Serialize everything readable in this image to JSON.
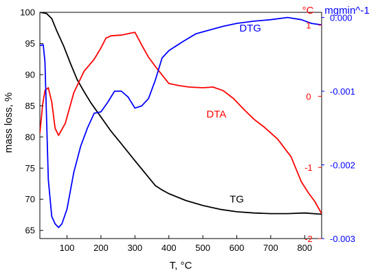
{
  "chart_data": {
    "type": "line",
    "title": "",
    "xlabel": "T, °C",
    "xlim": [
      20,
      850
    ],
    "x_ticks": [
      100,
      200,
      300,
      400,
      500,
      600,
      700,
      800
    ],
    "axes": {
      "left": {
        "label": "mass loss, %",
        "color": "#000000",
        "lim": [
          63.7,
          100
        ],
        "ticks": [
          65,
          70,
          75,
          80,
          85,
          90,
          95,
          100
        ]
      },
      "right1": {
        "label": "°C",
        "color": "#ff0000",
        "lim": [
          -2,
          1.18
        ],
        "ticks": [
          -2,
          -1,
          0,
          1
        ],
        "tick_labels": [
          "-2",
          "-1",
          "0",
          "1"
        ]
      },
      "right2": {
        "label": "mgmin^-1",
        "color": "#0000ff",
        "lim": [
          -0.003,
          7e-05
        ],
        "ticks": [
          -0.003,
          -0.002,
          -0.001,
          0.0
        ],
        "tick_labels": [
          "-0.003",
          "-0.002",
          "-0.001",
          "0.000"
        ]
      }
    },
    "series": [
      {
        "name": "TG",
        "axis": "left",
        "color": "#000000",
        "points": [
          [
            20,
            100
          ],
          [
            40,
            99.8
          ],
          [
            55,
            99.0
          ],
          [
            70,
            97.0
          ],
          [
            90,
            94.6
          ],
          [
            110,
            91.8
          ],
          [
            130,
            89.2
          ],
          [
            150,
            87.3
          ],
          [
            170,
            85.5
          ],
          [
            200,
            83.2
          ],
          [
            230,
            80.9
          ],
          [
            260,
            78.9
          ],
          [
            300,
            76.2
          ],
          [
            330,
            74.2
          ],
          [
            360,
            72.2
          ],
          [
            380,
            71.5
          ],
          [
            400,
            70.9
          ],
          [
            450,
            69.8
          ],
          [
            500,
            69.0
          ],
          [
            550,
            68.4
          ],
          [
            600,
            68.0
          ],
          [
            650,
            67.8
          ],
          [
            700,
            67.7
          ],
          [
            750,
            67.7
          ],
          [
            800,
            67.8
          ],
          [
            850,
            67.6
          ]
        ]
      },
      {
        "name": "DTA",
        "axis": "right1",
        "color": "#ff0000",
        "points": [
          [
            20,
            -0.52
          ],
          [
            28,
            -0.12
          ],
          [
            35,
            0.08
          ],
          [
            45,
            0.12
          ],
          [
            55,
            -0.08
          ],
          [
            65,
            -0.45
          ],
          [
            75,
            -0.55
          ],
          [
            95,
            -0.38
          ],
          [
            120,
            0.05
          ],
          [
            150,
            0.35
          ],
          [
            180,
            0.52
          ],
          [
            200,
            0.68
          ],
          [
            215,
            0.82
          ],
          [
            230,
            0.85
          ],
          [
            260,
            0.86
          ],
          [
            280,
            0.88
          ],
          [
            300,
            0.9
          ],
          [
            320,
            0.72
          ],
          [
            340,
            0.55
          ],
          [
            360,
            0.42
          ],
          [
            380,
            0.3
          ],
          [
            400,
            0.18
          ],
          [
            430,
            0.15
          ],
          [
            460,
            0.13
          ],
          [
            500,
            0.12
          ],
          [
            530,
            0.13
          ],
          [
            560,
            0.08
          ],
          [
            590,
            -0.03
          ],
          [
            620,
            -0.18
          ],
          [
            650,
            -0.32
          ],
          [
            680,
            -0.43
          ],
          [
            720,
            -0.6
          ],
          [
            760,
            -0.85
          ],
          [
            790,
            -1.2
          ],
          [
            810,
            -1.35
          ],
          [
            830,
            -1.48
          ],
          [
            850,
            -1.65
          ]
        ]
      },
      {
        "name": "DTG",
        "axis": "right2",
        "color": "#0000ff",
        "points": [
          [
            20,
            -0.00038
          ],
          [
            30,
            -0.00037
          ],
          [
            35,
            -0.0006
          ],
          [
            45,
            -0.0022
          ],
          [
            55,
            -0.0027
          ],
          [
            65,
            -0.0028
          ],
          [
            75,
            -0.00285
          ],
          [
            85,
            -0.0028
          ],
          [
            100,
            -0.0026
          ],
          [
            120,
            -0.0021
          ],
          [
            140,
            -0.00175
          ],
          [
            160,
            -0.0015
          ],
          [
            180,
            -0.0013
          ],
          [
            200,
            -0.00128
          ],
          [
            220,
            -0.00115
          ],
          [
            240,
            -0.001
          ],
          [
            260,
            -0.001
          ],
          [
            280,
            -0.00108
          ],
          [
            300,
            -0.00123
          ],
          [
            320,
            -0.0012
          ],
          [
            340,
            -0.0011
          ],
          [
            360,
            -0.00085
          ],
          [
            380,
            -0.00055
          ],
          [
            400,
            -0.00045
          ],
          [
            440,
            -0.00033
          ],
          [
            480,
            -0.00022
          ],
          [
            520,
            -0.00017
          ],
          [
            560,
            -0.00012
          ],
          [
            600,
            -8e-05
          ],
          [
            650,
            -5e-05
          ],
          [
            700,
            -3e-05
          ],
          [
            750,
            0.0
          ],
          [
            790,
            -3e-05
          ],
          [
            820,
            -8e-05
          ],
          [
            850,
            -0.0001
          ]
        ]
      }
    ],
    "annotations": [
      {
        "text": "TG",
        "x": 600,
        "y": 69.5,
        "axis": "left"
      },
      {
        "text": "DTA",
        "x": 540,
        "y": 83.1,
        "axis": "left"
      },
      {
        "text": "DTG",
        "x": 640,
        "y": 96.9,
        "axis": "left"
      }
    ]
  }
}
